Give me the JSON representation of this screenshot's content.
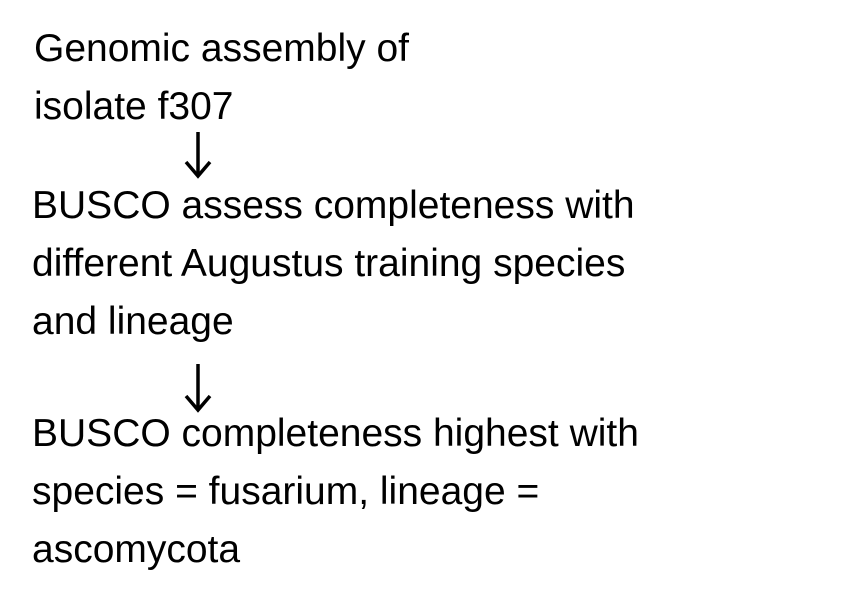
{
  "steps": [
    {
      "lines": [
        "Genomic assembly of",
        "isolate f307"
      ]
    },
    {
      "lines": [
        "BUSCO assess completeness with",
        "different Augustus training species",
        "and lineage"
      ]
    },
    {
      "lines": [
        "BUSCO completeness highest with",
        "species = fusarium, lineage =",
        "ascomycota"
      ]
    }
  ],
  "arrows": [
    {
      "icon": "arrow-down-icon"
    },
    {
      "icon": "arrow-down-icon"
    }
  ],
  "colors": {
    "text": "#000000",
    "background": "#ffffff"
  }
}
